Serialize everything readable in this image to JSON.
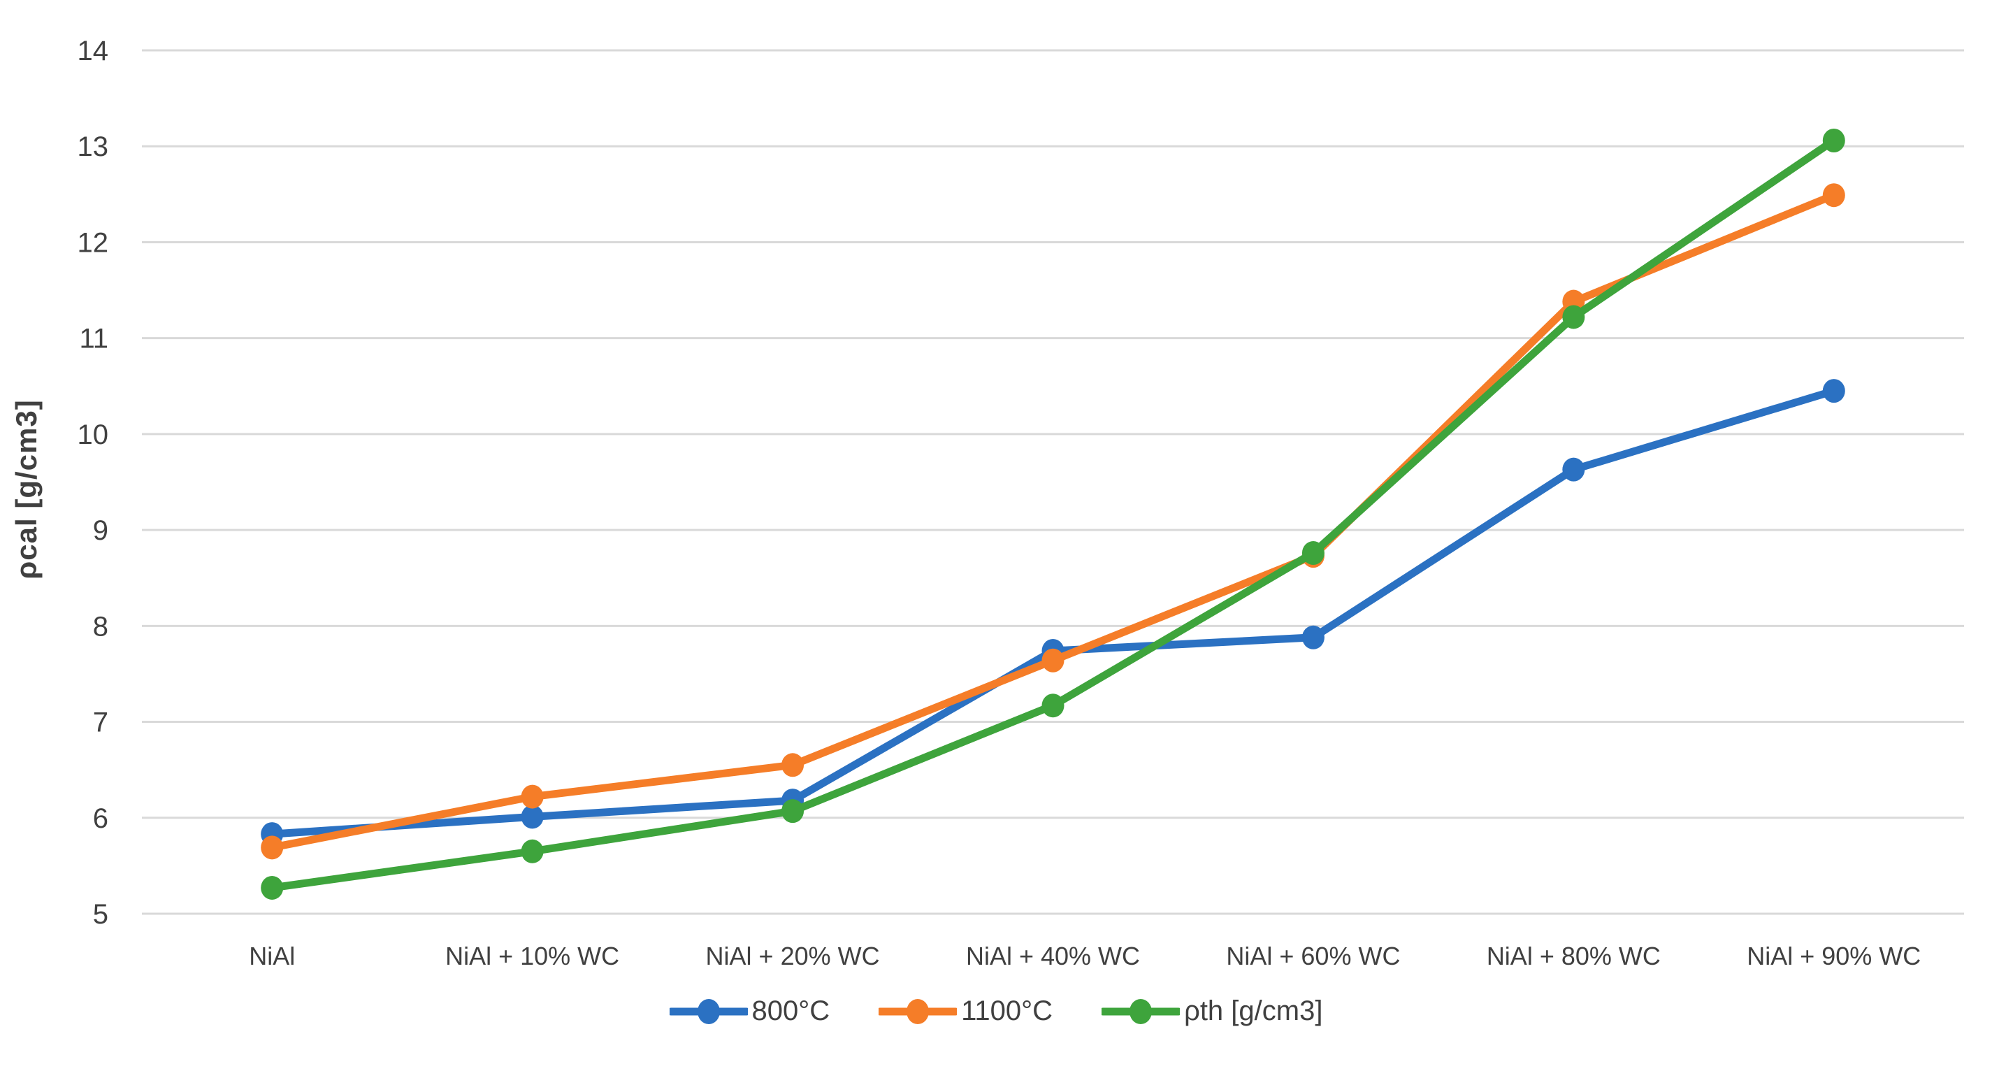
{
  "chart_data": {
    "type": "line",
    "title": "",
    "xlabel": "",
    "ylabel": "ρcal [g/cm3]",
    "ylim": [
      5,
      14
    ],
    "ytick_step": 1,
    "ytick_labels": [
      "5",
      "6",
      "7",
      "8",
      "9",
      "10",
      "11",
      "12",
      "13",
      "14"
    ],
    "grid": "horizontal-only",
    "legend_position": "bottom-center",
    "categories": [
      "NiAl",
      "NiAl + 10% WC",
      "NiAl + 20% WC",
      "NiAl + 40% WC",
      "NiAl + 60% WC",
      "NiAl + 80% WC",
      "NiAl + 90% WC"
    ],
    "series": [
      {
        "name": "800°C",
        "color": "#2B71C2",
        "values": [
          5.83,
          6.01,
          6.18,
          7.74,
          7.88,
          9.63,
          10.45
        ]
      },
      {
        "name": "1100°C",
        "color": "#F57D28",
        "values": [
          5.69,
          6.22,
          6.55,
          7.64,
          8.73,
          11.38,
          12.49
        ]
      },
      {
        "name": "ρth [g/cm3]",
        "color": "#3EA43C",
        "values": [
          5.27,
          5.65,
          6.07,
          7.17,
          8.76,
          11.22,
          13.06
        ]
      }
    ]
  },
  "colors": {
    "background": "#FFFFFF",
    "gridline": "#D9D9D9",
    "axis_text": "#404040"
  }
}
